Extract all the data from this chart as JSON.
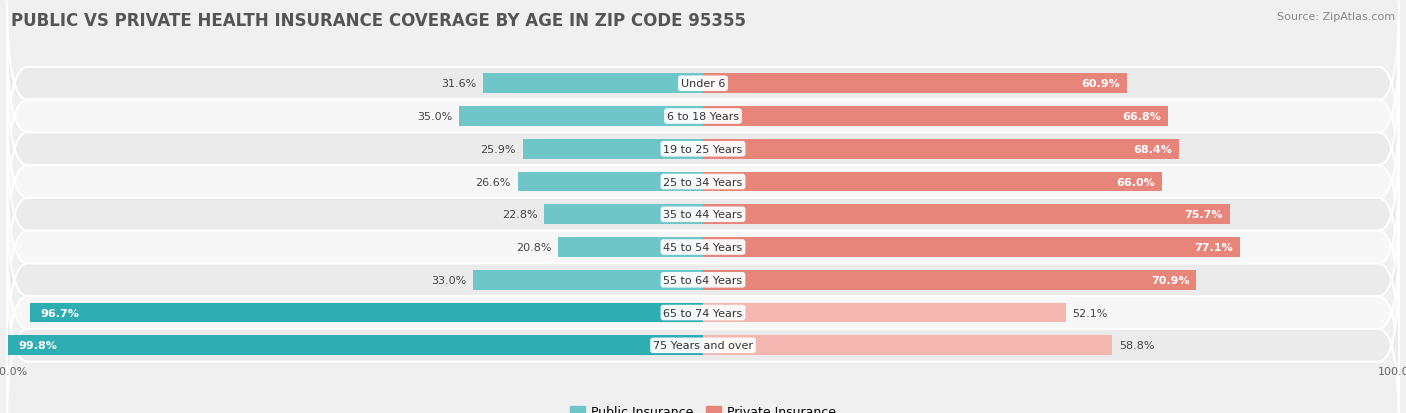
{
  "title": "PUBLIC VS PRIVATE HEALTH INSURANCE COVERAGE BY AGE IN ZIP CODE 95355",
  "source": "Source: ZipAtlas.com",
  "categories": [
    "Under 6",
    "6 to 18 Years",
    "19 to 25 Years",
    "25 to 34 Years",
    "35 to 44 Years",
    "45 to 54 Years",
    "55 to 64 Years",
    "65 to 74 Years",
    "75 Years and over"
  ],
  "public_values": [
    31.6,
    35.0,
    25.9,
    26.6,
    22.8,
    20.8,
    33.0,
    96.7,
    99.8
  ],
  "private_values": [
    60.9,
    66.8,
    68.4,
    66.0,
    75.7,
    77.1,
    70.9,
    52.1,
    58.8
  ],
  "public_color_normal": "#6ec6c9",
  "public_color_large": "#2eadb2",
  "private_color_normal": "#e8857a",
  "private_color_large": "#f5b8b0",
  "row_bg_odd": "#ebebeb",
  "row_bg_even": "#f7f7f7",
  "fig_bg": "#f0f0f0",
  "title_fontsize": 12,
  "tick_fontsize": 8,
  "source_fontsize": 8,
  "legend_fontsize": 9,
  "value_fontsize": 8,
  "cat_fontsize": 8,
  "bar_height": 0.6,
  "public_label": "Public Insurance",
  "private_label": "Private Insurance",
  "large_pub_threshold": 50,
  "large_priv_threshold": 60
}
